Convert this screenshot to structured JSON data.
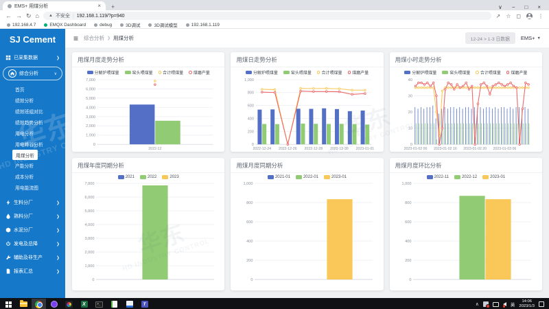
{
  "browser": {
    "tab_title": "EMS+ 用煤分析",
    "security_label": "不安全",
    "url": "192.168.1.119/?p=940",
    "bookmarks": [
      {
        "label": "192.168.4.7",
        "dot": "grey"
      },
      {
        "label": "EMQX Dashboard",
        "dot": "green"
      },
      {
        "label": "debug",
        "dot": "grey"
      },
      {
        "label": "3D调试",
        "dot": "grey"
      },
      {
        "label": "3D调试模型",
        "dot": "grey"
      },
      {
        "label": "192.168.1.119",
        "dot": "grey"
      }
    ]
  },
  "sidebar": {
    "brand": "SJ Cement",
    "top_items": [
      {
        "label": "已采集数据",
        "icon": "grid",
        "expanded": false
      },
      {
        "label": "综合分析",
        "icon": "home",
        "expanded": true
      }
    ],
    "submenu": [
      "首页",
      "绩效分析",
      "绩效班组对比",
      "绩效趋势分析",
      "用电分析",
      "用电峰谷分析",
      "用煤分析",
      "产能分析",
      "成本分析",
      "用电能流图"
    ],
    "selected": "用煤分析",
    "sections": [
      {
        "label": "生料分厂",
        "icon": "bolt"
      },
      {
        "label": "熟料分厂",
        "icon": "drop"
      },
      {
        "label": "水泥分厂",
        "icon": "cube"
      },
      {
        "label": "发电及总降",
        "icon": "power"
      },
      {
        "label": "辅助及非生产",
        "icon": "wrench"
      },
      {
        "label": "报表汇总",
        "icon": "doc"
      }
    ]
  },
  "header": {
    "breadcrumb": [
      "综合分析",
      "用煤分析"
    ],
    "date_range": "12-24 > 1-3 日数据",
    "profile": "EMS+"
  },
  "colors": {
    "sidebar_blue": "#1678c8",
    "bar_blue": "#5470c6",
    "bar_green": "#91cc75",
    "line_yellow": "#fac858",
    "line_red": "#ee6666"
  },
  "watermark": {
    "cn": "华东",
    "en": "HD INDUSTRY CONTROL"
  },
  "charts": [
    {
      "title": "用煤月度走势分析",
      "type": "combo",
      "h": 112,
      "ymax": 7000,
      "ystep": 1000,
      "categories": [
        "2022-12"
      ],
      "xlabels": [
        {
          "i": 0,
          "t": "2022-12"
        }
      ],
      "series": [
        {
          "name": "分解炉喂煤量",
          "type": "bar",
          "color": "#5470c6",
          "values": [
            4300
          ]
        },
        {
          "name": "窑头喂煤量",
          "type": "bar",
          "color": "#91cc75",
          "values": [
            2550
          ]
        },
        {
          "name": "合计喂煤量",
          "type": "line",
          "color": "#fac858",
          "values": [
            6850
          ]
        },
        {
          "name": "煤磨产量",
          "type": "line",
          "color": "#ee6666",
          "values": [
            6450
          ]
        }
      ]
    },
    {
      "title": "用煤日走势分析",
      "type": "combo",
      "h": 112,
      "ymax": 1000,
      "ystep": 200,
      "categories": [
        "2022-12-24",
        "2022-12-25",
        "2022-12-26",
        "2022-12-27",
        "2022-12-28",
        "2022-12-29",
        "2022-12-30",
        "2022-12-31",
        "2023-01-01"
      ],
      "xlabels": [
        {
          "i": 0,
          "t": "2022-12-24"
        },
        {
          "i": 2,
          "t": "2022-12-26"
        },
        {
          "i": 4,
          "t": "2022-12-28"
        },
        {
          "i": 6,
          "t": "2022-12-30"
        },
        {
          "i": 8,
          "t": "2023-01-01"
        }
      ],
      "series": [
        {
          "name": "分解炉喂煤量",
          "type": "bar",
          "color": "#5470c6",
          "values": [
            536,
            540,
            0,
            550,
            548,
            556,
            545,
            512,
            522
          ]
        },
        {
          "name": "窑头喂煤量",
          "type": "bar",
          "color": "#91cc75",
          "values": [
            315,
            312,
            0,
            320,
            317,
            315,
            317,
            314,
            306
          ]
        },
        {
          "name": "合计喂煤量",
          "type": "line",
          "color": "#fac858",
          "values": [
            850,
            846,
            0,
            864,
            862,
            864,
            858,
            838,
            836
          ]
        },
        {
          "name": "煤磨产量",
          "type": "line",
          "color": "#ee6666",
          "values": [
            806,
            800,
            0,
            822,
            816,
            816,
            812,
            772,
            784
          ]
        }
      ]
    },
    {
      "title": "用煤小时走势分析",
      "type": "combo",
      "h": 112,
      "ymax": 40,
      "ystep": 10,
      "x_start": "2023-01-02 00",
      "x_interval_hours": 1,
      "xlabels": [
        {
          "i": 0,
          "t": "2023-01-02 00"
        },
        {
          "i": 10,
          "t": "2023-01-02 10"
        },
        {
          "i": 20,
          "t": "2023-01-02 20"
        },
        {
          "i": 30,
          "t": "2023-01-03 06"
        }
      ],
      "series": [
        {
          "name": "分解炉喂煤量",
          "type": "bar",
          "color": "#5470c6",
          "values": [
            23,
            22,
            23,
            22,
            23,
            23,
            24,
            16,
            19,
            22,
            23,
            22,
            23,
            23,
            22,
            23,
            22,
            23,
            23,
            22,
            23,
            22,
            23,
            22,
            23,
            23,
            22,
            23,
            22,
            23,
            23,
            22,
            23,
            22,
            23,
            23,
            22,
            23,
            22
          ]
        },
        {
          "name": "窑头喂煤量",
          "type": "bar",
          "color": "#91cc75",
          "values": [
            13,
            13,
            13,
            13,
            13,
            13,
            13,
            3,
            13,
            13,
            13,
            13,
            13,
            13,
            13,
            13,
            13,
            13,
            13,
            13,
            13,
            13,
            13,
            13,
            13,
            13,
            13,
            13,
            13,
            13,
            13,
            13,
            13,
            13,
            13,
            13,
            13,
            13,
            13
          ]
        },
        {
          "name": "合计喂煤量",
          "type": "line",
          "color": "#fac858",
          "values": [
            35,
            35,
            35,
            35,
            35,
            35,
            35,
            20,
            5,
            33,
            35,
            35,
            35,
            35,
            35,
            35,
            35,
            35,
            35,
            35,
            35,
            35,
            35,
            35,
            35,
            35,
            35,
            35,
            35,
            35,
            35,
            35,
            35,
            35,
            35,
            35,
            35,
            35,
            35
          ]
        },
        {
          "name": "煤磨产量",
          "type": "line",
          "color": "#ee6666",
          "values": [
            36,
            38,
            38,
            37,
            38,
            36,
            38,
            30,
            0,
            10,
            34,
            38,
            37,
            34,
            37,
            35,
            36,
            38,
            34,
            36,
            0,
            25,
            37,
            38,
            36,
            31,
            36,
            37,
            38,
            37,
            36,
            37,
            38,
            36,
            35,
            0,
            22,
            38,
            37
          ]
        }
      ]
    },
    {
      "title": "用煤年度同期分析",
      "type": "bar",
      "h": 156,
      "ymax": 7000,
      "ystep": 1000,
      "categories": [
        ""
      ],
      "xlabels": [],
      "series": [
        {
          "name": "2021",
          "type": "bar",
          "color": "#5470c6",
          "values": [
            null
          ]
        },
        {
          "name": "2022",
          "type": "bar",
          "color": "#91cc75",
          "values": [
            6850
          ]
        },
        {
          "name": "2023",
          "type": "bar",
          "color": "#fac858",
          "values": [
            null
          ]
        }
      ]
    },
    {
      "title": "用煤月度同期分析",
      "type": "bar",
      "h": 156,
      "ymax": 1000,
      "ystep": 200,
      "categories": [
        ""
      ],
      "xlabels": [],
      "series": [
        {
          "name": "2021-01",
          "type": "bar",
          "color": "#5470c6",
          "values": [
            null
          ]
        },
        {
          "name": "2022-01",
          "type": "bar",
          "color": "#91cc75",
          "values": [
            null
          ]
        },
        {
          "name": "2023-01",
          "type": "bar",
          "color": "#fac858",
          "values": [
            835
          ]
        }
      ]
    },
    {
      "title": "用煤月度环比分析",
      "type": "bar",
      "h": 156,
      "ymax": 1000,
      "ystep": 200,
      "categories": [
        ""
      ],
      "xlabels": [],
      "series": [
        {
          "name": "2022-11",
          "type": "bar",
          "color": "#5470c6",
          "values": [
            null
          ]
        },
        {
          "name": "2022-12",
          "type": "bar",
          "color": "#91cc75",
          "values": [
            870
          ]
        },
        {
          "name": "2023-01",
          "type": "bar",
          "color": "#fac858",
          "values": [
            835
          ]
        }
      ]
    }
  ],
  "taskbar": {
    "apps": [
      "start",
      "explorer",
      "chrome",
      "purple",
      "colorwheel",
      "excel",
      "terminal",
      "notepad",
      "bluedoc",
      "teams"
    ],
    "active_app": "chrome",
    "ime": "英",
    "time": "14:06",
    "date": "2023/1/3"
  }
}
